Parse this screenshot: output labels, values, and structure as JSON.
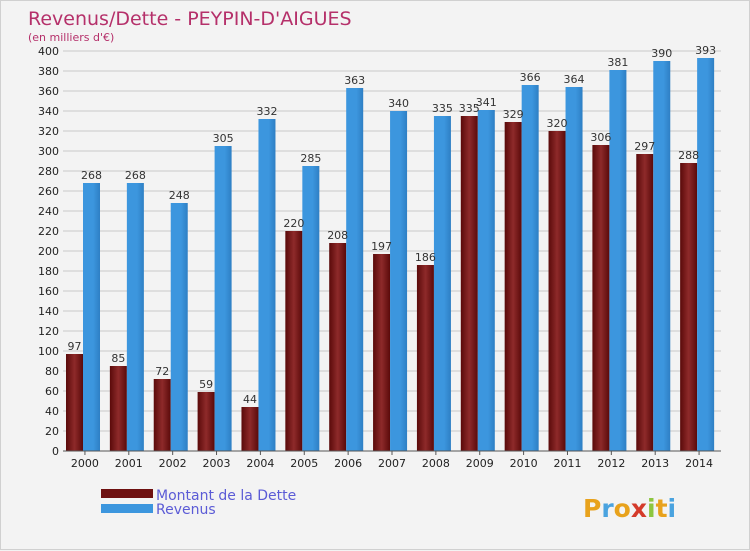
{
  "chart_data": {
    "type": "bar",
    "title": "Revenus/Dette - PEYPIN-D'AIGUES",
    "subtitle": "(en milliers d'€)",
    "categories": [
      "2000",
      "2001",
      "2002",
      "2003",
      "2004",
      "2005",
      "2006",
      "2007",
      "2008",
      "2009",
      "2010",
      "2011",
      "2012",
      "2013",
      "2014"
    ],
    "series": [
      {
        "name": "Montant de la Dette",
        "color": "#7a1414",
        "values": [
          97,
          85,
          72,
          59,
          44,
          220,
          208,
          197,
          186,
          335,
          329,
          320,
          306,
          297,
          288
        ]
      },
      {
        "name": "Revenus",
        "color": "#3c96de",
        "values": [
          268,
          268,
          248,
          305,
          332,
          285,
          363,
          340,
          335,
          341,
          366,
          364,
          381,
          390,
          393
        ]
      }
    ],
    "ylim": [
      0,
      400
    ],
    "ytick_step": 20,
    "grid": true,
    "legend_position": "bottom-left",
    "xlabel": "",
    "ylabel": ""
  },
  "logo": {
    "text": "Proxiti"
  }
}
